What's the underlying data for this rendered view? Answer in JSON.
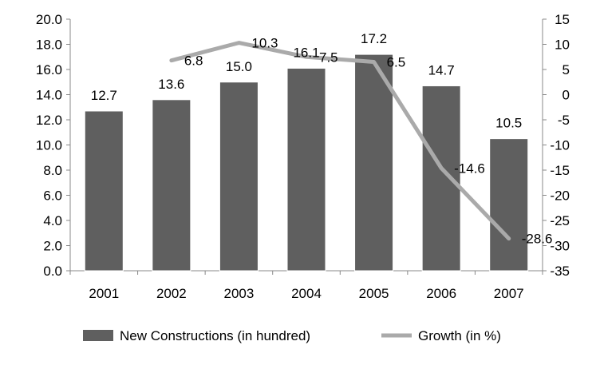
{
  "chart_data": {
    "type": "bar",
    "categories": [
      "2001",
      "2002",
      "2003",
      "2004",
      "2005",
      "2006",
      "2007"
    ],
    "series": [
      {
        "name": "New Constructions (in hundred)",
        "type": "bar",
        "axis": "left",
        "color": "#5f5f5f",
        "values": [
          12.7,
          13.6,
          15.0,
          16.1,
          17.2,
          14.7,
          10.5
        ],
        "labels": [
          "12.7",
          "13.6",
          "15.0",
          "16.1",
          "17.2",
          "14.7",
          "10.5"
        ]
      },
      {
        "name": "Growth (in %)",
        "type": "line",
        "axis": "right",
        "color": "#aaaaaa",
        "values": [
          null,
          6.8,
          10.3,
          7.5,
          6.5,
          -14.6,
          -28.6
        ],
        "labels": [
          "",
          "6.8",
          "10.3",
          "7.5",
          "6.5",
          "-14.6",
          "-28.6"
        ]
      }
    ],
    "y_left": {
      "ylim": [
        0,
        20
      ],
      "ticks": [
        0,
        2,
        4,
        6,
        8,
        10,
        12,
        14,
        16,
        18,
        20
      ],
      "tick_labels": [
        "0.0",
        "2.0",
        "4.0",
        "6.0",
        "8.0",
        "10.0",
        "12.0",
        "14.0",
        "16.0",
        "18.0",
        "20.0"
      ]
    },
    "y_right": {
      "ylim": [
        -35,
        15
      ],
      "ticks": [
        -35,
        -30,
        -25,
        -20,
        -15,
        -10,
        -5,
        0,
        5,
        10,
        15
      ],
      "tick_labels": [
        "-35",
        "-30",
        "-25",
        "-20",
        "-15",
        "-10",
        "-5",
        "0",
        "5",
        "10",
        "15"
      ]
    },
    "grid": false,
    "legend_position": "bottom"
  }
}
